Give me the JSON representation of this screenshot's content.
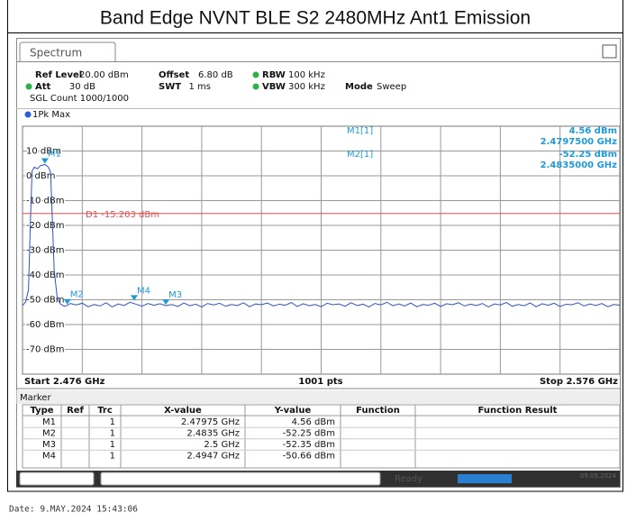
{
  "title": "Band Edge NVNT BLE S2 2480MHz Ant1 Emission",
  "tab": "Spectrum",
  "settings": [
    {
      "label": "Ref Level",
      "value": "20.00 dBm"
    },
    {
      "label": "Offset",
      "value": "6.80 dB"
    },
    {
      "label": "RBW",
      "value": "100 kHz"
    },
    {
      "label": "Att",
      "value": "30 dB"
    },
    {
      "label": "SWT",
      "value": "1 ms"
    },
    {
      "label": "VBW",
      "value": "300 kHz"
    },
    {
      "label": "Mode",
      "value": "Sweep"
    }
  ],
  "sgl_count": "SGL Count 1000/1000",
  "trace_label": "1Pk Max",
  "chart_data": {
    "type": "line",
    "color": "#3050c8",
    "grid": true,
    "xlim": [
      2.476,
      2.576
    ],
    "ylim": [
      -80,
      20
    ],
    "xticks": [
      2.486,
      2.496,
      2.506,
      2.516,
      2.526,
      2.536,
      2.546,
      2.556,
      2.566
    ],
    "yticks": [
      {
        "value": 10,
        "label": "10 dBm"
      },
      {
        "value": 0,
        "label": "0 dBm"
      },
      {
        "value": -10,
        "label": "-10 dBm"
      },
      {
        "value": -20,
        "label": "-20 dBm"
      },
      {
        "value": -30,
        "label": "-30 dBm"
      },
      {
        "value": -40,
        "label": "-40 dBm"
      },
      {
        "value": -50,
        "label": "-50 dBm"
      },
      {
        "value": -60,
        "label": "-60 dBm"
      },
      {
        "value": -70,
        "label": "-70 dBm"
      }
    ],
    "x": [
      2.476,
      2.4765,
      2.477,
      2.4773,
      2.4776,
      2.478,
      2.4785,
      2.479,
      2.47975,
      2.4803,
      2.4807,
      2.481,
      2.4813,
      2.4818,
      2.4823,
      2.483,
      2.4835,
      2.484,
      2.485,
      2.486,
      2.487,
      2.488,
      2.489,
      2.49,
      2.491,
      2.492,
      2.493,
      2.494,
      2.495,
      2.496,
      2.497,
      2.498,
      2.499,
      2.5,
      2.501,
      2.502,
      2.503,
      2.504,
      2.505,
      2.506,
      2.507,
      2.508,
      2.509,
      2.51,
      2.511,
      2.512,
      2.513,
      2.514,
      2.515,
      2.516,
      2.517,
      2.518,
      2.519,
      2.52,
      2.521,
      2.522,
      2.523,
      2.524,
      2.525,
      2.526,
      2.527,
      2.528,
      2.529,
      2.53,
      2.531,
      2.532,
      2.533,
      2.534,
      2.535,
      2.536,
      2.537,
      2.538,
      2.539,
      2.54,
      2.541,
      2.542,
      2.543,
      2.544,
      2.545,
      2.546,
      2.547,
      2.548,
      2.549,
      2.55,
      2.551,
      2.552,
      2.553,
      2.554,
      2.555,
      2.556,
      2.557,
      2.558,
      2.559,
      2.56,
      2.561,
      2.562,
      2.563,
      2.564,
      2.565,
      2.566,
      2.567,
      2.568,
      2.569,
      2.57,
      2.571,
      2.572,
      2.573,
      2.574,
      2.575,
      2.576
    ],
    "values": [
      -52.3,
      -51.0,
      -46.0,
      -20,
      2.0,
      3.5,
      2.8,
      4.1,
      4.56,
      3.6,
      1.5,
      -18,
      -38,
      -49,
      -51.6,
      -52.6,
      -52.25,
      -51.5,
      -52.1,
      -51.4,
      -52.8,
      -51.9,
      -52.5,
      -51.2,
      -52.9,
      -51.7,
      -52.3,
      -51.0,
      -51.8,
      -52.6,
      -51.5,
      -52.2,
      -51.6,
      -52.35,
      -51.9,
      -52.7,
      -51.3,
      -52.4,
      -51.8,
      -52.9,
      -51.5,
      -52.1,
      -51.4,
      -52.6,
      -51.9,
      -52.3,
      -51.2,
      -52.8,
      -51.7,
      -52.0,
      -51.3,
      -52.5,
      -51.8,
      -52.2,
      -51.1,
      -52.7,
      -51.6,
      -52.4,
      -51.9,
      -52.8,
      -51.4,
      -52.0,
      -51.7,
      -52.6,
      -51.2,
      -52.3,
      -51.8,
      -52.9,
      -51.5,
      -52.1,
      -51.0,
      -52.4,
      -51.7,
      -52.5,
      -51.3,
      -52.8,
      -51.9,
      -52.2,
      -51.4,
      -52.7,
      -51.6,
      -52.0,
      -51.2,
      -52.5,
      -51.8,
      -52.3,
      -51.5,
      -52.9,
      -51.7,
      -52.1,
      -51.1,
      -52.6,
      -51.9,
      -52.4,
      -51.3,
      -52.8,
      -51.6,
      -52.2,
      -51.4,
      -52.7,
      -51.8,
      -52.0,
      -51.2,
      -52.5,
      -51.7,
      -52.3,
      -51.5,
      -52.8,
      -51.9,
      -52.2
    ],
    "reference_line": {
      "label": "D1 -15.203 dBm",
      "value": -15.203,
      "color": "#e05050"
    },
    "markers": [
      {
        "name": "M1",
        "x": 2.47975,
        "y": 4.56
      },
      {
        "name": "M2",
        "x": 2.4835,
        "y": -52.25
      },
      {
        "name": "M3",
        "x": 2.5,
        "y": -52.35
      },
      {
        "name": "M4",
        "x": 2.4947,
        "y": -50.66
      }
    ],
    "marker_color": "#1f9ad8",
    "readout": [
      {
        "name": "M1[1]",
        "level": "4.56 dBm",
        "freq": "2.4797500 GHz"
      },
      {
        "name": "M2[1]",
        "level": "-52.25 dBm",
        "freq": "2.4835000 GHz"
      }
    ],
    "start_label": "Start 2.476 GHz",
    "points_label": "1001 pts",
    "stop_label": "Stop 2.576 GHz"
  },
  "marker_table": {
    "title": "Marker",
    "columns": [
      "Type",
      "Ref",
      "Trc",
      "X-value",
      "Y-value",
      "Function",
      "Function Result"
    ],
    "rows": [
      [
        "M1",
        "",
        "1",
        "2.47975 GHz",
        "4.56 dBm",
        "",
        ""
      ],
      [
        "M2",
        "",
        "1",
        "2.4835 GHz",
        "-52.25 dBm",
        "",
        ""
      ],
      [
        "M3",
        "",
        "1",
        "2.5 GHz",
        "-52.35 dBm",
        "",
        ""
      ],
      [
        "M4",
        "",
        "1",
        "2.4947 GHz",
        "-50.66 dBm",
        "",
        ""
      ]
    ]
  },
  "status": {
    "ready": "Ready",
    "date_small": "09.05.2024"
  },
  "footer": "Date: 9.MAY.2024  15:43:06"
}
